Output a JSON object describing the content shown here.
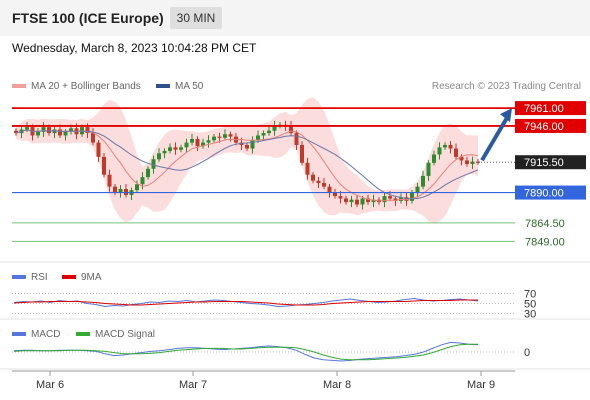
{
  "header": {
    "title": "FTSE 100 (ICE Europe)",
    "timeframe": "30 MIN"
  },
  "timestamp": "Wednesday, March 8, 2023 10:04:28 PM CET",
  "credit": "Research © 2023 Trading Central",
  "legend": {
    "ma20": "MA 20 + Bollinger Bands",
    "ma50": "MA 50",
    "rsi": "RSI",
    "rsi_ma": "9MA",
    "macd": "MACD",
    "macd_signal": "MACD Signal"
  },
  "colors": {
    "up": "#2e8b2e",
    "down": "#c0392b",
    "resistance": "#e00000",
    "pivot": "#3366dd",
    "support": "#77c277",
    "bollinger_fill": "#fbd7d7",
    "ma20": "#e8807a",
    "ma50": "#6677aa",
    "current_price_bg": "#222222",
    "arrow": "#2a5aa0",
    "rsi": "#5577dd",
    "rsi_ma": "#dd0000",
    "macd": "#5577dd",
    "macd_signal": "#33aa33"
  },
  "chart_data": [
    {
      "type": "candlestick",
      "title": "FTSE 100 (ICE Europe) 30 MIN",
      "x_ticks": [
        "Mar 6",
        "Mar 7",
        "Mar 8",
        "Mar 9"
      ],
      "ylim": [
        7835,
        7972
      ],
      "current_price": 7915.5,
      "levels": [
        {
          "label": "7961.00",
          "value": 7961.0,
          "kind": "resistance"
        },
        {
          "label": "7946.00",
          "value": 7946.0,
          "kind": "resistance"
        },
        {
          "label": "7890.00",
          "value": 7890.0,
          "kind": "pivot"
        },
        {
          "label": "7864.50",
          "value": 7864.5,
          "kind": "support"
        },
        {
          "label": "7849.00",
          "value": 7849.0,
          "kind": "support"
        }
      ],
      "current_label": "7915.50",
      "forecast_target": 7961.0,
      "close_path": [
        7940,
        7943,
        7945,
        7938,
        7941,
        7945,
        7940,
        7943,
        7938,
        7941,
        7944,
        7939,
        7945,
        7940,
        7932,
        7920,
        7905,
        7895,
        7890,
        7893,
        7888,
        7892,
        7897,
        7903,
        7910,
        7918,
        7923,
        7925,
        7928,
        7926,
        7928,
        7932,
        7935,
        7929,
        7932,
        7934,
        7937,
        7936,
        7939,
        7937,
        7932,
        7930,
        7927,
        7934,
        7938,
        7940,
        7942,
        7946,
        7947,
        7946,
        7940,
        7930,
        7915,
        7905,
        7900,
        7898,
        7895,
        7890,
        7887,
        7885,
        7882,
        7884,
        7880,
        7885,
        7882,
        7884,
        7882,
        7887,
        7885,
        7883,
        7886,
        7883,
        7890,
        7895,
        7904,
        7915,
        7922,
        7928,
        7930,
        7927,
        7920,
        7917,
        7914,
        7916,
        7915.5
      ]
    },
    {
      "type": "line",
      "title": "RSI",
      "levels": [
        70,
        50,
        30
      ],
      "level_labels": [
        "70",
        "50",
        "30"
      ],
      "series": [
        {
          "name": "RSI",
          "values": [
            52,
            54,
            53,
            55,
            52,
            56,
            54,
            55,
            50,
            48,
            44,
            46,
            45,
            48,
            50,
            53,
            52,
            55,
            54,
            56,
            53,
            55,
            57,
            56,
            54,
            52,
            50,
            49,
            47,
            44,
            45,
            47,
            48,
            50,
            52,
            55,
            57,
            59,
            56,
            54,
            52,
            53,
            55,
            58,
            60,
            57,
            55,
            56,
            58,
            59,
            57,
            55
          ]
        },
        {
          "name": "9MA",
          "values": [
            51,
            52,
            53,
            53,
            54,
            54,
            54,
            54,
            53,
            52,
            50,
            49,
            48,
            47,
            47,
            48,
            49,
            50,
            51,
            52,
            53,
            53,
            54,
            54,
            54,
            54,
            53,
            52,
            51,
            49,
            48,
            47,
            47,
            47,
            48,
            50,
            51,
            52,
            53,
            54,
            54,
            54,
            54,
            54,
            55,
            56,
            56,
            56,
            56,
            57,
            57,
            57
          ]
        }
      ]
    },
    {
      "type": "line",
      "title": "MACD",
      "levels": [
        0
      ],
      "level_labels": [
        "0"
      ],
      "series": [
        {
          "name": "MACD",
          "values": [
            2,
            3,
            3,
            2,
            2,
            3,
            3,
            3,
            2,
            1,
            -3,
            -6,
            -5,
            -3,
            -1,
            1,
            2,
            4,
            6,
            7,
            7,
            6,
            5,
            4,
            5,
            6,
            7,
            9,
            10,
            9,
            7,
            3,
            -4,
            -10,
            -13,
            -14,
            -15,
            -14,
            -12,
            -11,
            -10,
            -9,
            -8,
            -6,
            -4,
            0,
            6,
            12,
            16,
            15,
            13,
            12
          ]
        },
        {
          "name": "MACD Signal",
          "values": [
            1,
            2,
            2,
            2,
            2,
            2,
            3,
            3,
            3,
            2,
            1,
            -1,
            -3,
            -3,
            -3,
            -2,
            -1,
            1,
            3,
            4,
            5,
            6,
            6,
            6,
            5,
            5,
            6,
            7,
            8,
            8,
            8,
            7,
            4,
            0,
            -5,
            -9,
            -12,
            -13,
            -13,
            -13,
            -12,
            -11,
            -10,
            -9,
            -7,
            -5,
            -1,
            4,
            9,
            12,
            13,
            13
          ]
        }
      ]
    }
  ]
}
